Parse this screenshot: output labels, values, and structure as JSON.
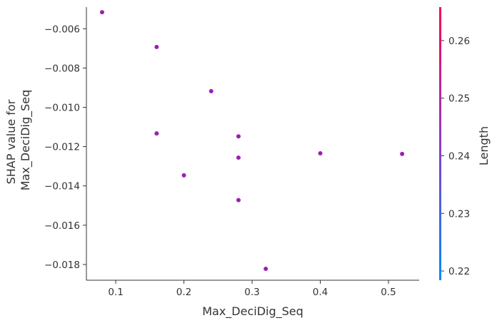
{
  "chart_data": {
    "type": "scatter",
    "xlabel": "Max_DeciDig_Seq",
    "ylabel_lines": [
      "SHAP value for",
      "Max_DeciDig_Seq"
    ],
    "xlim": [
      0.057,
      0.545
    ],
    "ylim": [
      -0.0188,
      -0.0049
    ],
    "xticks": [
      0.1,
      0.2,
      0.3,
      0.4,
      0.5
    ],
    "xtick_labels": [
      "0.1",
      "0.2",
      "0.3",
      "0.4",
      "0.5"
    ],
    "yticks": [
      -0.006,
      -0.008,
      -0.01,
      -0.012,
      -0.014,
      -0.016,
      -0.018
    ],
    "ytick_labels": [
      "−0.006",
      "−0.008",
      "−0.010",
      "−0.012",
      "−0.014",
      "−0.016",
      "−0.018"
    ],
    "grid": false,
    "marker_color": "#9b1fb0",
    "points": [
      {
        "x": 0.08,
        "y": -0.00516
      },
      {
        "x": 0.16,
        "y": -0.00693
      },
      {
        "x": 0.24,
        "y": -0.00918
      },
      {
        "x": 0.16,
        "y": -0.01133
      },
      {
        "x": 0.28,
        "y": -0.01148
      },
      {
        "x": 0.28,
        "y": -0.01256
      },
      {
        "x": 0.4,
        "y": -0.01234
      },
      {
        "x": 0.52,
        "y": -0.01237
      },
      {
        "x": 0.2,
        "y": -0.01346
      },
      {
        "x": 0.28,
        "y": -0.01472
      },
      {
        "x": 0.32,
        "y": -0.01822
      }
    ],
    "colorbar": {
      "label": "Length",
      "range": [
        0.2184,
        0.2658
      ],
      "ticks": [
        0.22,
        0.23,
        0.24,
        0.25,
        0.26
      ],
      "tick_labels": [
        "0.22",
        "0.23",
        "0.24",
        "0.25",
        "0.26"
      ],
      "color_low": "#008afb",
      "color_mid": "#8b3ec8",
      "color_high": "#ff0052"
    }
  }
}
